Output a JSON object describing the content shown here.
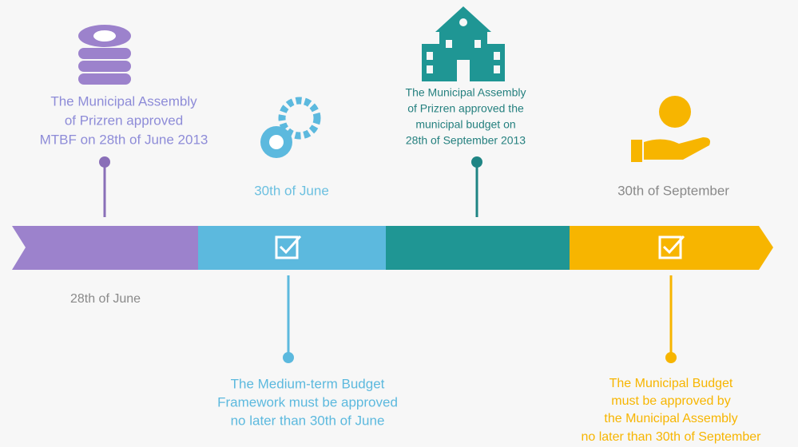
{
  "events": [
    {
      "lines": [
        "The Municipal Assembly",
        "of Prizren approved",
        "MTBF on 28th of June 2013"
      ]
    },
    {
      "lines": [
        "The Municipal Assembly",
        "of Prizren approved the",
        "municipal budget on",
        "28th of September 2013"
      ]
    },
    {
      "lines": [
        "The Medium-term Budget",
        "Framework must be approved",
        "no later than 30th of June"
      ]
    },
    {
      "lines": [
        "The Municipal Budget",
        "must be approved by",
        "the Municipal Assembly",
        "no later than 30th of September"
      ]
    }
  ],
  "dates": [
    "30th of June",
    "30th of September",
    "28th of June"
  ]
}
